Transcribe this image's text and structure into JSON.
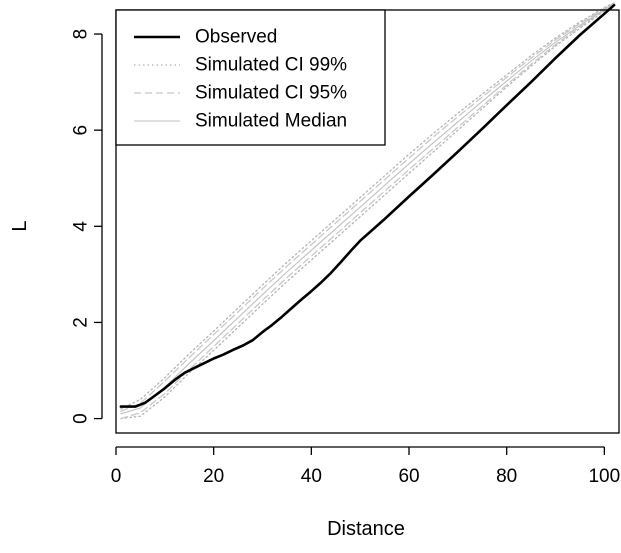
{
  "chart_data": {
    "type": "line",
    "title": "",
    "xlabel": "Distance",
    "ylabel": "L",
    "xlim": [
      0,
      103
    ],
    "ylim": [
      -0.3,
      8.5
    ],
    "x_ticks": [
      0,
      20,
      40,
      60,
      80,
      100
    ],
    "y_ticks": [
      0,
      2,
      4,
      6,
      8
    ],
    "legend": {
      "position": "top-left",
      "entries": [
        "Observed",
        "Simulated CI 99%",
        "Simulated CI 95%",
        "Simulated Median"
      ]
    },
    "series": [
      {
        "name": "Observed",
        "color": "#000000",
        "style": "solid-thick",
        "points": [
          [
            1,
            0.25
          ],
          [
            4,
            0.25
          ],
          [
            6,
            0.33
          ],
          [
            8,
            0.48
          ],
          [
            10,
            0.63
          ],
          [
            12,
            0.8
          ],
          [
            14,
            0.95
          ],
          [
            16,
            1.05
          ],
          [
            18,
            1.15
          ],
          [
            20,
            1.25
          ],
          [
            22,
            1.33
          ],
          [
            24,
            1.43
          ],
          [
            26,
            1.52
          ],
          [
            28,
            1.63
          ],
          [
            30,
            1.8
          ],
          [
            32,
            1.95
          ],
          [
            34,
            2.12
          ],
          [
            36,
            2.3
          ],
          [
            38,
            2.48
          ],
          [
            40,
            2.65
          ],
          [
            42,
            2.83
          ],
          [
            44,
            3.03
          ],
          [
            46,
            3.25
          ],
          [
            48,
            3.48
          ],
          [
            50,
            3.7
          ],
          [
            55,
            4.15
          ],
          [
            60,
            4.62
          ],
          [
            65,
            5.08
          ],
          [
            70,
            5.55
          ],
          [
            75,
            6.03
          ],
          [
            80,
            6.52
          ],
          [
            85,
            7.0
          ],
          [
            90,
            7.5
          ],
          [
            95,
            7.98
          ],
          [
            100,
            8.42
          ],
          [
            102,
            8.6
          ]
        ]
      },
      {
        "name": "Simulated CI 99%",
        "color": "#b4b4b4",
        "style": "dotted",
        "points": [
          [
            1,
            0.2
          ],
          [
            5,
            0.4
          ],
          [
            10,
            0.85
          ],
          [
            15,
            1.35
          ],
          [
            20,
            1.82
          ],
          [
            25,
            2.3
          ],
          [
            30,
            2.78
          ],
          [
            35,
            3.25
          ],
          [
            40,
            3.7
          ],
          [
            45,
            4.15
          ],
          [
            50,
            4.6
          ],
          [
            55,
            5.05
          ],
          [
            60,
            5.5
          ],
          [
            65,
            5.93
          ],
          [
            70,
            6.35
          ],
          [
            75,
            6.75
          ],
          [
            80,
            7.15
          ],
          [
            85,
            7.55
          ],
          [
            90,
            7.92
          ],
          [
            95,
            8.25
          ],
          [
            100,
            8.55
          ],
          [
            102,
            8.65
          ]
        ]
      },
      {
        "name": "Simulated CI 99%",
        "color": "#b4b4b4",
        "style": "dotted",
        "points": [
          [
            1,
            0.0
          ],
          [
            5,
            0.05
          ],
          [
            10,
            0.45
          ],
          [
            15,
            0.95
          ],
          [
            20,
            1.42
          ],
          [
            25,
            1.9
          ],
          [
            30,
            2.38
          ],
          [
            35,
            2.85
          ],
          [
            40,
            3.3
          ],
          [
            45,
            3.75
          ],
          [
            50,
            4.2
          ],
          [
            55,
            4.65
          ],
          [
            60,
            5.1
          ],
          [
            65,
            5.55
          ],
          [
            70,
            6.0
          ],
          [
            75,
            6.45
          ],
          [
            80,
            6.9
          ],
          [
            85,
            7.33
          ],
          [
            90,
            7.75
          ],
          [
            95,
            8.12
          ],
          [
            100,
            8.48
          ],
          [
            102,
            8.62
          ]
        ]
      },
      {
        "name": "Simulated CI 95%",
        "color": "#c8c8c8",
        "style": "dashed",
        "points": [
          [
            1,
            0.15
          ],
          [
            5,
            0.32
          ],
          [
            10,
            0.78
          ],
          [
            15,
            1.27
          ],
          [
            20,
            1.75
          ],
          [
            25,
            2.22
          ],
          [
            30,
            2.7
          ],
          [
            35,
            3.17
          ],
          [
            40,
            3.62
          ],
          [
            45,
            4.07
          ],
          [
            50,
            4.52
          ],
          [
            55,
            4.97
          ],
          [
            60,
            5.42
          ],
          [
            65,
            5.86
          ],
          [
            70,
            6.28
          ],
          [
            75,
            6.69
          ],
          [
            80,
            7.1
          ],
          [
            85,
            7.5
          ],
          [
            90,
            7.88
          ],
          [
            95,
            8.22
          ],
          [
            100,
            8.53
          ],
          [
            102,
            8.64
          ]
        ]
      },
      {
        "name": "Simulated CI 95%",
        "color": "#c8c8c8",
        "style": "dashed",
        "points": [
          [
            1,
            0.0
          ],
          [
            5,
            0.12
          ],
          [
            10,
            0.52
          ],
          [
            15,
            1.02
          ],
          [
            20,
            1.5
          ],
          [
            25,
            1.98
          ],
          [
            30,
            2.46
          ],
          [
            35,
            2.93
          ],
          [
            40,
            3.38
          ],
          [
            45,
            3.83
          ],
          [
            50,
            4.28
          ],
          [
            55,
            4.73
          ],
          [
            60,
            5.18
          ],
          [
            65,
            5.62
          ],
          [
            70,
            6.06
          ],
          [
            75,
            6.5
          ],
          [
            80,
            6.94
          ],
          [
            85,
            7.37
          ],
          [
            90,
            7.78
          ],
          [
            95,
            8.15
          ],
          [
            100,
            8.5
          ],
          [
            102,
            8.63
          ]
        ]
      },
      {
        "name": "Simulated Median",
        "color": "#c0c0c0",
        "style": "solid-thin",
        "points": [
          [
            1,
            0.1
          ],
          [
            5,
            0.22
          ],
          [
            10,
            0.65
          ],
          [
            15,
            1.15
          ],
          [
            20,
            1.62
          ],
          [
            25,
            2.1
          ],
          [
            30,
            2.58
          ],
          [
            35,
            3.05
          ],
          [
            40,
            3.5
          ],
          [
            45,
            3.95
          ],
          [
            50,
            4.4
          ],
          [
            55,
            4.85
          ],
          [
            60,
            5.3
          ],
          [
            65,
            5.74
          ],
          [
            70,
            6.17
          ],
          [
            75,
            6.6
          ],
          [
            80,
            7.02
          ],
          [
            85,
            7.44
          ],
          [
            90,
            7.83
          ],
          [
            95,
            8.18
          ],
          [
            100,
            8.51
          ],
          [
            102,
            8.63
          ]
        ]
      }
    ]
  }
}
